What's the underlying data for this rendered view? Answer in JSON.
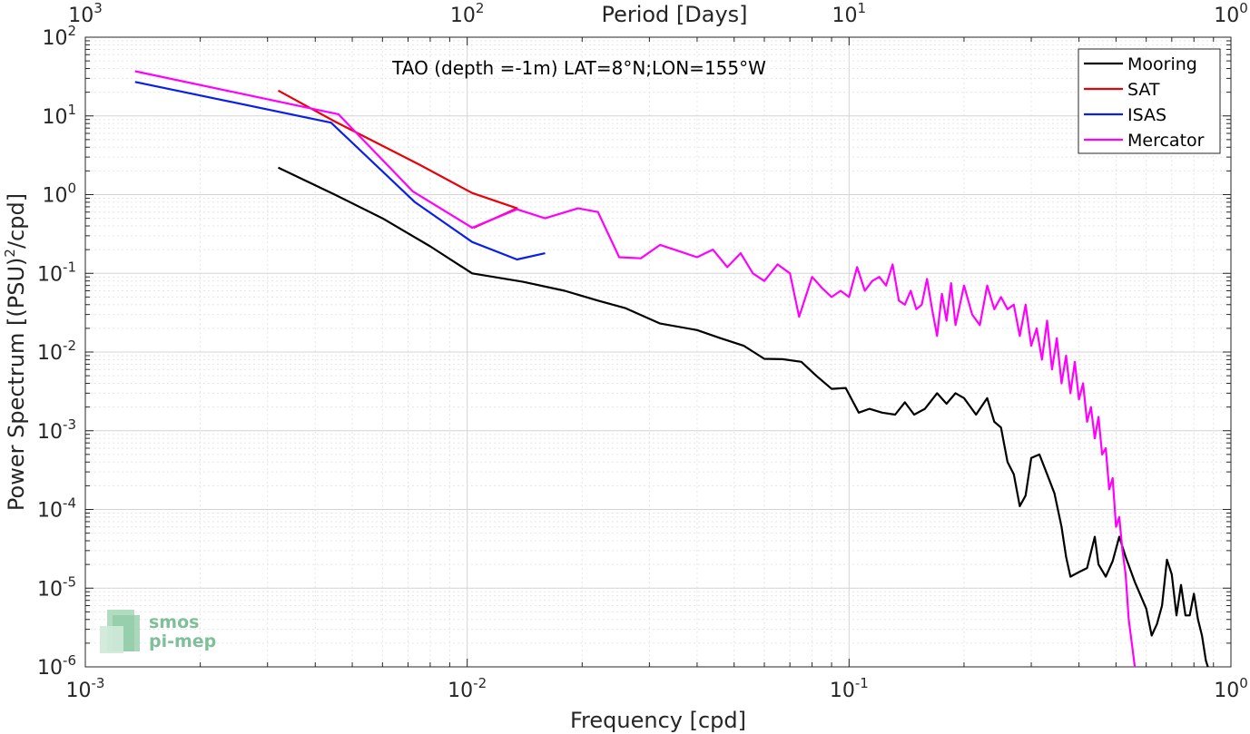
{
  "chart_data": {
    "type": "line",
    "title": "TAO (depth =-1m) LAT=8°N;LON=155°W",
    "xlabel": "Frequency [cpd]",
    "ylabel": "Power Spectrum [(PSU)",
    "ylabel_sup": "2",
    "ylabel_tail": "/cpd]",
    "top_xlabel": "Period [Days]",
    "xscale": "log",
    "yscale": "log",
    "xlim": [
      0.001,
      1
    ],
    "ylim": [
      1e-06,
      100
    ],
    "grid": true,
    "legend_position": "top-right",
    "x_ticks": [
      {
        "base": "10",
        "exp": "-3",
        "value": 0.001
      },
      {
        "base": "10",
        "exp": "-2",
        "value": 0.01
      },
      {
        "base": "10",
        "exp": "-1",
        "value": 0.1
      },
      {
        "base": "10",
        "exp": "0",
        "value": 1
      }
    ],
    "top_ticks": [
      {
        "base": "10",
        "exp": "3",
        "value": 0.001
      },
      {
        "base": "10",
        "exp": "2",
        "value": 0.01
      },
      {
        "base": "10",
        "exp": "1",
        "value": 0.1
      },
      {
        "base": "10",
        "exp": "0",
        "value": 1
      }
    ],
    "y_ticks": [
      {
        "base": "10",
        "exp": "2",
        "value": 100
      },
      {
        "base": "10",
        "exp": "1",
        "value": 10
      },
      {
        "base": "10",
        "exp": "0",
        "value": 1
      },
      {
        "base": "10",
        "exp": "-1",
        "value": 0.1
      },
      {
        "base": "10",
        "exp": "-2",
        "value": 0.01
      },
      {
        "base": "10",
        "exp": "-3",
        "value": 0.001
      },
      {
        "base": "10",
        "exp": "-4",
        "value": 0.0001
      },
      {
        "base": "10",
        "exp": "-5",
        "value": 1e-05
      },
      {
        "base": "10",
        "exp": "-6",
        "value": 1e-06
      }
    ],
    "series": [
      {
        "name": "Mooring",
        "color": "#000000",
        "points": [
          [
            0.0032,
            2.2
          ],
          [
            0.0045,
            1.0
          ],
          [
            0.006,
            0.5
          ],
          [
            0.008,
            0.22
          ],
          [
            0.0103,
            0.1
          ],
          [
            0.014,
            0.078
          ],
          [
            0.018,
            0.06
          ],
          [
            0.022,
            0.045
          ],
          [
            0.026,
            0.036
          ],
          [
            0.032,
            0.023
          ],
          [
            0.04,
            0.019
          ],
          [
            0.046,
            0.015
          ],
          [
            0.053,
            0.012
          ],
          [
            0.06,
            0.0082
          ],
          [
            0.067,
            0.0081
          ],
          [
            0.075,
            0.0075
          ],
          [
            0.082,
            0.005
          ],
          [
            0.09,
            0.0034
          ],
          [
            0.098,
            0.0035
          ],
          [
            0.106,
            0.0017
          ],
          [
            0.113,
            0.0019
          ],
          [
            0.122,
            0.0017
          ],
          [
            0.132,
            0.0016
          ],
          [
            0.14,
            0.0023
          ],
          [
            0.148,
            0.0016
          ],
          [
            0.158,
            0.0019
          ],
          [
            0.17,
            0.003
          ],
          [
            0.18,
            0.0022
          ],
          [
            0.19,
            0.003
          ],
          [
            0.2,
            0.0026
          ],
          [
            0.215,
            0.0016
          ],
          [
            0.23,
            0.0026
          ],
          [
            0.24,
            0.0013
          ],
          [
            0.25,
            0.0011
          ],
          [
            0.26,
            0.0004
          ],
          [
            0.27,
            0.00028
          ],
          [
            0.28,
            0.00011
          ],
          [
            0.29,
            0.00015
          ],
          [
            0.3,
            0.00045
          ],
          [
            0.315,
            0.0005
          ],
          [
            0.33,
            0.00028
          ],
          [
            0.345,
            0.00016
          ],
          [
            0.36,
            6e-05
          ],
          [
            0.37,
            2.5e-05
          ],
          [
            0.38,
            1.4e-05
          ],
          [
            0.4,
            1.6e-05
          ],
          [
            0.42,
            1.8e-05
          ],
          [
            0.44,
            4.5e-05
          ],
          [
            0.45,
            2e-05
          ],
          [
            0.47,
            1.4e-05
          ],
          [
            0.49,
            2.2e-05
          ],
          [
            0.51,
            4.5e-05
          ],
          [
            0.53,
            2.5e-05
          ],
          [
            0.56,
            1.2e-05
          ],
          [
            0.6,
            5.5e-06
          ],
          [
            0.62,
            2.5e-06
          ],
          [
            0.64,
            3.5e-06
          ],
          [
            0.66,
            6e-06
          ],
          [
            0.68,
            2.3e-05
          ],
          [
            0.7,
            1.5e-05
          ],
          [
            0.72,
            4.5e-06
          ],
          [
            0.74,
            1.1e-05
          ],
          [
            0.76,
            4.5e-06
          ],
          [
            0.78,
            4.5e-06
          ],
          [
            0.8,
            8.5e-06
          ],
          [
            0.82,
            4e-06
          ],
          [
            0.84,
            2.5e-06
          ],
          [
            0.86,
            1.2e-06
          ],
          [
            0.87,
            1e-06
          ]
        ]
      },
      {
        "name": "SAT",
        "color": "#e8000b",
        "points": [
          [
            0.0032,
            21
          ],
          [
            0.0045,
            8.5
          ],
          [
            0.0075,
            2.4
          ],
          [
            0.0103,
            1.05
          ],
          [
            0.0135,
            0.67
          ],
          [
            0.0104,
            0.38
          ]
        ]
      },
      {
        "name": "ISAS",
        "color": "#0a1fe8",
        "points": [
          [
            0.00135,
            27
          ],
          [
            0.0044,
            8.2
          ],
          [
            0.0073,
            0.8
          ],
          [
            0.0103,
            0.25
          ],
          [
            0.0135,
            0.15
          ],
          [
            0.016,
            0.18
          ]
        ]
      },
      {
        "name": "Mercator",
        "color": "#ff00ff",
        "points": [
          [
            0.00135,
            37
          ],
          [
            0.0046,
            10.5
          ],
          [
            0.0072,
            1.1
          ],
          [
            0.0103,
            0.38
          ],
          [
            0.0135,
            0.65
          ],
          [
            0.016,
            0.5
          ],
          [
            0.0195,
            0.67
          ],
          [
            0.022,
            0.6
          ],
          [
            0.025,
            0.16
          ],
          [
            0.0285,
            0.155
          ],
          [
            0.032,
            0.23
          ],
          [
            0.036,
            0.19
          ],
          [
            0.04,
            0.16
          ],
          [
            0.044,
            0.2
          ],
          [
            0.048,
            0.12
          ],
          [
            0.052,
            0.18
          ],
          [
            0.056,
            0.1
          ],
          [
            0.06,
            0.08
          ],
          [
            0.065,
            0.13
          ],
          [
            0.07,
            0.1
          ],
          [
            0.074,
            0.028
          ],
          [
            0.08,
            0.09
          ],
          [
            0.085,
            0.065
          ],
          [
            0.09,
            0.05
          ],
          [
            0.095,
            0.06
          ],
          [
            0.1,
            0.05
          ],
          [
            0.105,
            0.12
          ],
          [
            0.11,
            0.06
          ],
          [
            0.115,
            0.08
          ],
          [
            0.12,
            0.09
          ],
          [
            0.125,
            0.07
          ],
          [
            0.13,
            0.13
          ],
          [
            0.135,
            0.045
          ],
          [
            0.14,
            0.04
          ],
          [
            0.145,
            0.06
          ],
          [
            0.15,
            0.035
          ],
          [
            0.155,
            0.04
          ],
          [
            0.16,
            0.085
          ],
          [
            0.165,
            0.035
          ],
          [
            0.17,
            0.016
          ],
          [
            0.175,
            0.055
          ],
          [
            0.18,
            0.025
          ],
          [
            0.185,
            0.075
          ],
          [
            0.19,
            0.022
          ],
          [
            0.2,
            0.07
          ],
          [
            0.21,
            0.03
          ],
          [
            0.22,
            0.022
          ],
          [
            0.23,
            0.07
          ],
          [
            0.24,
            0.035
          ],
          [
            0.25,
            0.05
          ],
          [
            0.26,
            0.035
          ],
          [
            0.27,
            0.04
          ],
          [
            0.28,
            0.016
          ],
          [
            0.29,
            0.04
          ],
          [
            0.3,
            0.012
          ],
          [
            0.31,
            0.02
          ],
          [
            0.32,
            0.008
          ],
          [
            0.33,
            0.025
          ],
          [
            0.34,
            0.006
          ],
          [
            0.35,
            0.015
          ],
          [
            0.36,
            0.004
          ],
          [
            0.37,
            0.009
          ],
          [
            0.38,
            0.003
          ],
          [
            0.39,
            0.0075
          ],
          [
            0.4,
            0.0025
          ],
          [
            0.41,
            0.004
          ],
          [
            0.42,
            0.0013
          ],
          [
            0.43,
            0.002
          ],
          [
            0.44,
            0.0008
          ],
          [
            0.45,
            0.0015
          ],
          [
            0.46,
            0.0005
          ],
          [
            0.47,
            0.0006
          ],
          [
            0.48,
            0.00018
          ],
          [
            0.49,
            0.00025
          ],
          [
            0.5,
            6e-05
          ],
          [
            0.51,
            8e-05
          ],
          [
            0.52,
            3e-05
          ],
          [
            0.53,
            1.5e-05
          ],
          [
            0.54,
            4e-06
          ],
          [
            0.55,
            2e-06
          ],
          [
            0.56,
            1e-06
          ]
        ]
      }
    ]
  },
  "logo": {
    "line1": "smos",
    "line2": "pi-mep"
  }
}
